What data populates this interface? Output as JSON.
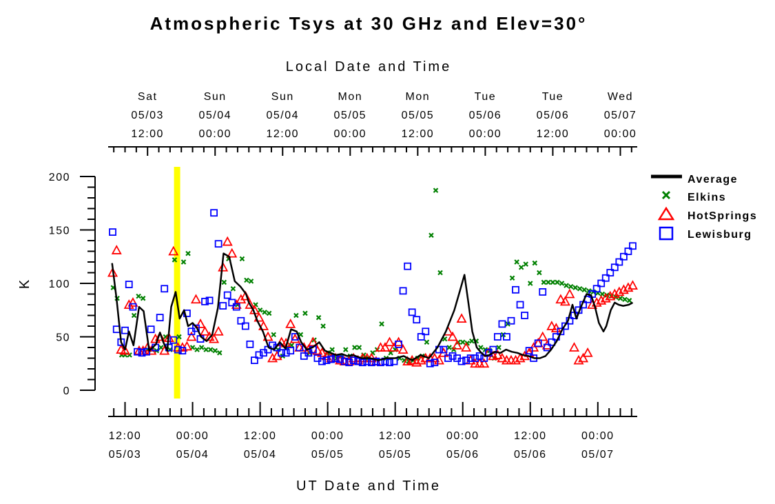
{
  "chart_data": {
    "type": "line",
    "title": "Atmospheric Tsys at 30 GHz and Elev=30°",
    "ylabel": "K",
    "xlabel_bottom": "UT Date and Time",
    "xlabel_top": "Local Date and Time",
    "ylim": [
      0,
      200
    ],
    "yticks": [
      "0",
      "50",
      "100",
      "150",
      "200"
    ],
    "bottom_ticks": [
      {
        "hour": 12,
        "l1": "12:00",
        "l2": "05/03"
      },
      {
        "hour": 24,
        "l1": "00:00",
        "l2": "05/04"
      },
      {
        "hour": 36,
        "l1": "12:00",
        "l2": "05/04"
      },
      {
        "hour": 48,
        "l1": "00:00",
        "l2": "05/05"
      },
      {
        "hour": 60,
        "l1": "12:00",
        "l2": "05/05"
      },
      {
        "hour": 72,
        "l1": "00:00",
        "l2": "05/06"
      },
      {
        "hour": 84,
        "l1": "12:00",
        "l2": "05/06"
      },
      {
        "hour": 96,
        "l1": "00:00",
        "l2": "05/07"
      }
    ],
    "top_ticks": [
      {
        "hour": 16,
        "l0": "Sat",
        "l1": "05/03",
        "l2": "12:00"
      },
      {
        "hour": 28,
        "l0": "Sun",
        "l1": "05/04",
        "l2": "00:00"
      },
      {
        "hour": 40,
        "l0": "Sun",
        "l1": "05/04",
        "l2": "12:00"
      },
      {
        "hour": 52,
        "l0": "Mon",
        "l1": "05/05",
        "l2": "00:00"
      },
      {
        "hour": 64,
        "l0": "Mon",
        "l1": "05/05",
        "l2": "12:00"
      },
      {
        "hour": 76,
        "l0": "Tue",
        "l1": "05/06",
        "l2": "00:00"
      },
      {
        "hour": 88,
        "l0": "Tue",
        "l1": "05/06",
        "l2": "12:00"
      },
      {
        "hour": 100,
        "l0": "Wed",
        "l1": "05/07",
        "l2": "00:00"
      }
    ],
    "xlim_hours": [
      9,
      103
    ],
    "highlight": {
      "start_hour": 20.7,
      "end_hour": 21.8,
      "color": "#ffff00"
    },
    "legend": {
      "placement": "right"
    },
    "series": [
      {
        "name": "Average",
        "style": "line",
        "color": "#000000",
        "x": [
          9.7,
          10.5,
          11.3,
          12.0,
          12.7,
          13.5,
          14.5,
          15.3,
          16.3,
          17.5,
          18.2,
          18.8,
          19.5,
          20.2,
          21.0,
          21.7,
          22.5,
          23.2,
          24.0,
          24.8,
          25.5,
          26.5,
          27.5,
          28.5,
          29.5,
          30.5,
          31.5,
          32.5,
          33.5,
          34.0,
          34.8,
          35.5,
          36.5,
          37.5,
          38.5,
          39.5,
          40.5,
          41.5,
          42.5,
          43.3,
          44.3,
          45.3,
          46.5,
          47.5,
          48.5,
          49.5,
          50.5,
          51.5,
          52.5,
          54.0,
          55.5,
          57.0,
          58.5,
          60.0,
          61.5,
          63.0,
          64.5,
          66.0,
          67.5,
          69.0,
          70.5,
          71.5,
          72.3,
          73.0,
          73.7,
          74.5,
          75.3,
          76.0,
          76.7,
          77.7,
          78.7,
          79.7,
          80.7,
          81.7,
          82.7,
          83.7,
          84.7,
          85.7,
          86.7,
          87.7,
          88.7,
          89.7,
          90.7,
          91.5,
          92.2,
          93.0,
          94.0,
          94.8,
          95.5,
          96.2,
          97.0,
          97.5,
          98.3,
          99.0,
          99.7,
          100.5,
          101.5,
          102.2
        ],
        "y": [
          119,
          85,
          45,
          38,
          55,
          42,
          78,
          74,
          37,
          43,
          54,
          45,
          37,
          78,
          92,
          67,
          75,
          60,
          63,
          58,
          50,
          46,
          52,
          77,
          128,
          125,
          102,
          97,
          90,
          82,
          75,
          65,
          55,
          40,
          38,
          45,
          39,
          57,
          55,
          45,
          38,
          40,
          45,
          37,
          35,
          33,
          34,
          32,
          33,
          30,
          30,
          28,
          30,
          30,
          32,
          28,
          33,
          30,
          40,
          55,
          75,
          93,
          108,
          82,
          55,
          40,
          35,
          32,
          33,
          36,
          35,
          38,
          36,
          35,
          33,
          32,
          30,
          30,
          32,
          38,
          46,
          57,
          65,
          80,
          67,
          78,
          90,
          89,
          78,
          63,
          55,
          60,
          75,
          82,
          80,
          79,
          80,
          82
        ]
      },
      {
        "name": "Elkins",
        "style": "x",
        "color": "#008000",
        "x": [
          9.9,
          10.6,
          11.4,
          12.0,
          12.8,
          13.6,
          14.4,
          15.2,
          16.0,
          16.8,
          17.6,
          18.4,
          19.2,
          20.0,
          20.8,
          21.6,
          22.4,
          23.2,
          24.0,
          24.8,
          25.6,
          26.4,
          27.2,
          28.0,
          28.8,
          29.6,
          30.4,
          31.2,
          32.0,
          32.8,
          33.6,
          34.4,
          35.2,
          36.0,
          36.8,
          37.6,
          38.4,
          39.2,
          40.0,
          40.8,
          41.6,
          42.4,
          43.2,
          44.0,
          44.8,
          45.6,
          46.4,
          47.2,
          48.0,
          48.8,
          49.6,
          50.4,
          51.2,
          52.0,
          52.8,
          53.6,
          54.4,
          55.2,
          56.0,
          56.8,
          57.6,
          58.4,
          59.2,
          60.0,
          60.8,
          61.6,
          62.4,
          63.2,
          64.0,
          64.8,
          65.6,
          66.4,
          67.2,
          68.0,
          68.8,
          69.6,
          70.4,
          71.2,
          72.0,
          72.8,
          73.6,
          74.4,
          75.2,
          76.0,
          76.8,
          77.6,
          78.4,
          79.2,
          80.0,
          80.8,
          81.6,
          82.4,
          83.2,
          84.0,
          84.8,
          85.6,
          86.4,
          87.2,
          88.0,
          88.8,
          89.6,
          90.4,
          91.2,
          92.0,
          92.8,
          93.6,
          94.4,
          95.2,
          96.0,
          96.8,
          97.6,
          98.4,
          99.2,
          100.0,
          100.8,
          101.6
        ],
        "y": [
          96,
          86,
          33,
          33,
          33,
          70,
          88,
          86,
          38,
          38,
          37,
          40,
          50,
          38,
          122,
          50,
          120,
          128,
          40,
          38,
          40,
          38,
          38,
          37,
          35,
          101,
          123,
          95,
          80,
          123,
          103,
          102,
          80,
          75,
          73,
          72,
          52,
          38,
          32,
          40,
          42,
          70,
          52,
          72,
          35,
          47,
          68,
          60,
          35,
          38,
          30,
          32,
          38,
          32,
          40,
          40,
          33,
          30,
          35,
          38,
          62,
          30,
          35,
          38,
          30,
          28,
          27,
          28,
          30,
          32,
          45,
          145,
          187,
          110,
          48,
          40,
          38,
          45,
          45,
          44,
          46,
          46,
          40,
          38,
          37,
          30,
          40,
          52,
          62,
          105,
          120,
          115,
          118,
          100,
          119,
          110,
          101,
          101,
          101,
          101,
          100,
          98,
          97,
          96,
          95,
          94,
          93,
          92,
          91,
          90,
          89,
          88,
          87,
          86,
          85,
          84
        ]
      },
      {
        "name": "HotSprings",
        "style": "triangle",
        "color": "#ff0000",
        "x": [
          9.8,
          10.5,
          11.3,
          12.0,
          12.7,
          13.4,
          14.5,
          15.2,
          16.0,
          16.7,
          17.4,
          18.2,
          19.0,
          19.8,
          20.6,
          21.4,
          22.2,
          23.0,
          23.8,
          24.6,
          25.4,
          26.2,
          27.0,
          27.8,
          28.6,
          29.4,
          30.2,
          31.0,
          31.8,
          32.6,
          33.4,
          34.2,
          35.0,
          35.8,
          36.6,
          37.4,
          38.2,
          39.0,
          39.8,
          40.6,
          41.4,
          42.2,
          43.0,
          43.8,
          44.6,
          45.4,
          46.2,
          47.0,
          47.8,
          48.6,
          49.4,
          50.2,
          51.0,
          51.8,
          52.6,
          53.4,
          54.2,
          55.0,
          55.8,
          56.6,
          57.4,
          58.2,
          59.0,
          59.8,
          60.6,
          61.4,
          62.2,
          63.0,
          63.8,
          64.6,
          65.4,
          66.2,
          67.0,
          67.8,
          68.6,
          69.4,
          70.2,
          71.0,
          71.8,
          72.6,
          73.4,
          74.2,
          75.0,
          75.8,
          76.6,
          77.4,
          78.2,
          79.0,
          79.8,
          80.6,
          81.4,
          82.2,
          83.0,
          83.8,
          84.6,
          85.4,
          86.2,
          87.0,
          87.8,
          88.6,
          89.4,
          90.2,
          91.0,
          91.8,
          92.6,
          93.4,
          94.2,
          95.0,
          95.8,
          96.6,
          97.4,
          98.2,
          99.0,
          99.8,
          100.6,
          101.4,
          102.2
        ],
        "y": [
          110,
          131,
          38,
          37,
          80,
          82,
          37,
          37,
          40,
          37,
          48,
          50,
          37,
          49,
          130,
          40,
          40,
          41,
          50,
          85,
          62,
          55,
          50,
          48,
          55,
          115,
          139,
          128,
          80,
          85,
          88,
          80,
          75,
          68,
          60,
          50,
          30,
          32,
          45,
          44,
          62,
          48,
          40,
          40,
          38,
          45,
          37,
          35,
          32,
          30,
          30,
          28,
          27,
          27,
          30,
          28,
          30,
          30,
          30,
          27,
          40,
          40,
          45,
          40,
          45,
          38,
          27,
          28,
          26,
          28,
          30,
          30,
          30,
          28,
          35,
          55,
          50,
          42,
          67,
          40,
          28,
          25,
          25,
          25,
          35,
          32,
          33,
          30,
          28,
          28,
          28,
          30,
          32,
          35,
          40,
          44,
          50,
          42,
          60,
          58,
          85,
          83,
          90,
          40,
          28,
          30,
          35,
          80,
          82,
          84,
          86,
          88,
          90,
          92,
          94,
          96,
          98
        ]
      },
      {
        "name": "Lewisburg",
        "style": "square",
        "color": "#0000ff",
        "x": [
          9.8,
          10.5,
          11.3,
          12.0,
          12.7,
          13.4,
          14.2,
          15.0,
          15.8,
          16.6,
          17.4,
          18.2,
          19.0,
          19.8,
          20.6,
          21.4,
          22.2,
          23.0,
          23.8,
          24.6,
          25.4,
          26.2,
          27.0,
          27.8,
          28.6,
          29.4,
          30.2,
          31.0,
          31.8,
          32.6,
          33.4,
          34.2,
          35.0,
          35.8,
          36.6,
          37.4,
          38.2,
          39.0,
          39.8,
          40.6,
          41.4,
          42.2,
          43.0,
          43.8,
          44.6,
          45.4,
          46.2,
          47.0,
          47.8,
          48.6,
          49.4,
          50.2,
          51.0,
          51.8,
          52.6,
          53.4,
          54.2,
          55.0,
          55.8,
          56.6,
          57.4,
          58.2,
          59.0,
          59.8,
          60.6,
          61.4,
          62.2,
          63.0,
          63.8,
          64.6,
          65.4,
          66.2,
          67.0,
          67.8,
          68.6,
          69.4,
          70.2,
          71.0,
          71.8,
          72.6,
          73.4,
          74.2,
          75.0,
          75.8,
          76.6,
          77.4,
          78.2,
          79.0,
          79.8,
          80.6,
          81.4,
          82.2,
          83.0,
          83.8,
          84.6,
          85.4,
          86.2,
          87.0,
          87.8,
          88.6,
          89.4,
          90.2,
          91.0,
          91.8,
          92.6,
          93.4,
          94.2,
          95.0,
          95.8,
          96.6,
          97.4,
          98.2,
          99.0,
          99.8,
          100.6,
          101.4,
          102.2
        ],
        "y": [
          148,
          57,
          45,
          56,
          99,
          78,
          36,
          35,
          36,
          57,
          40,
          68,
          95,
          40,
          47,
          38,
          37,
          72,
          55,
          58,
          48,
          83,
          84,
          166,
          137,
          79,
          89,
          82,
          78,
          65,
          60,
          43,
          28,
          33,
          35,
          38,
          42,
          40,
          35,
          35,
          37,
          50,
          40,
          32,
          35,
          38,
          30,
          27,
          28,
          29,
          30,
          29,
          27,
          26,
          28,
          27,
          26,
          27,
          26,
          27,
          26,
          27,
          26,
          27,
          43,
          93,
          116,
          73,
          66,
          50,
          55,
          25,
          26,
          38,
          38,
          30,
          32,
          30,
          27,
          28,
          30,
          30,
          32,
          30,
          35,
          38,
          50,
          62,
          50,
          65,
          94,
          80,
          70,
          37,
          30,
          44,
          92,
          40,
          45,
          50,
          55,
          60,
          65,
          70,
          75,
          80,
          85,
          90,
          95,
          100,
          105,
          110,
          115,
          120,
          125,
          130,
          135
        ]
      }
    ]
  }
}
